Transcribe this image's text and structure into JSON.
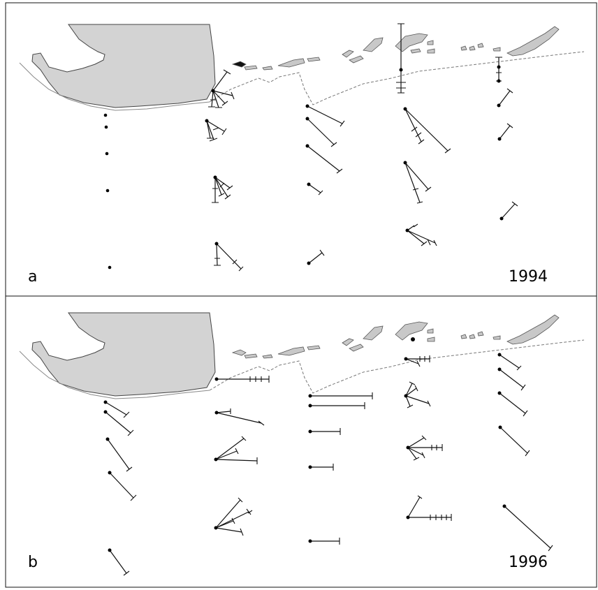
{
  "panels": [
    {
      "label": "a",
      "year": "1994"
    },
    {
      "label": "b",
      "year": "1996"
    }
  ],
  "colors": {
    "land": "#d3d3d3",
    "ink": "#111111"
  }
}
